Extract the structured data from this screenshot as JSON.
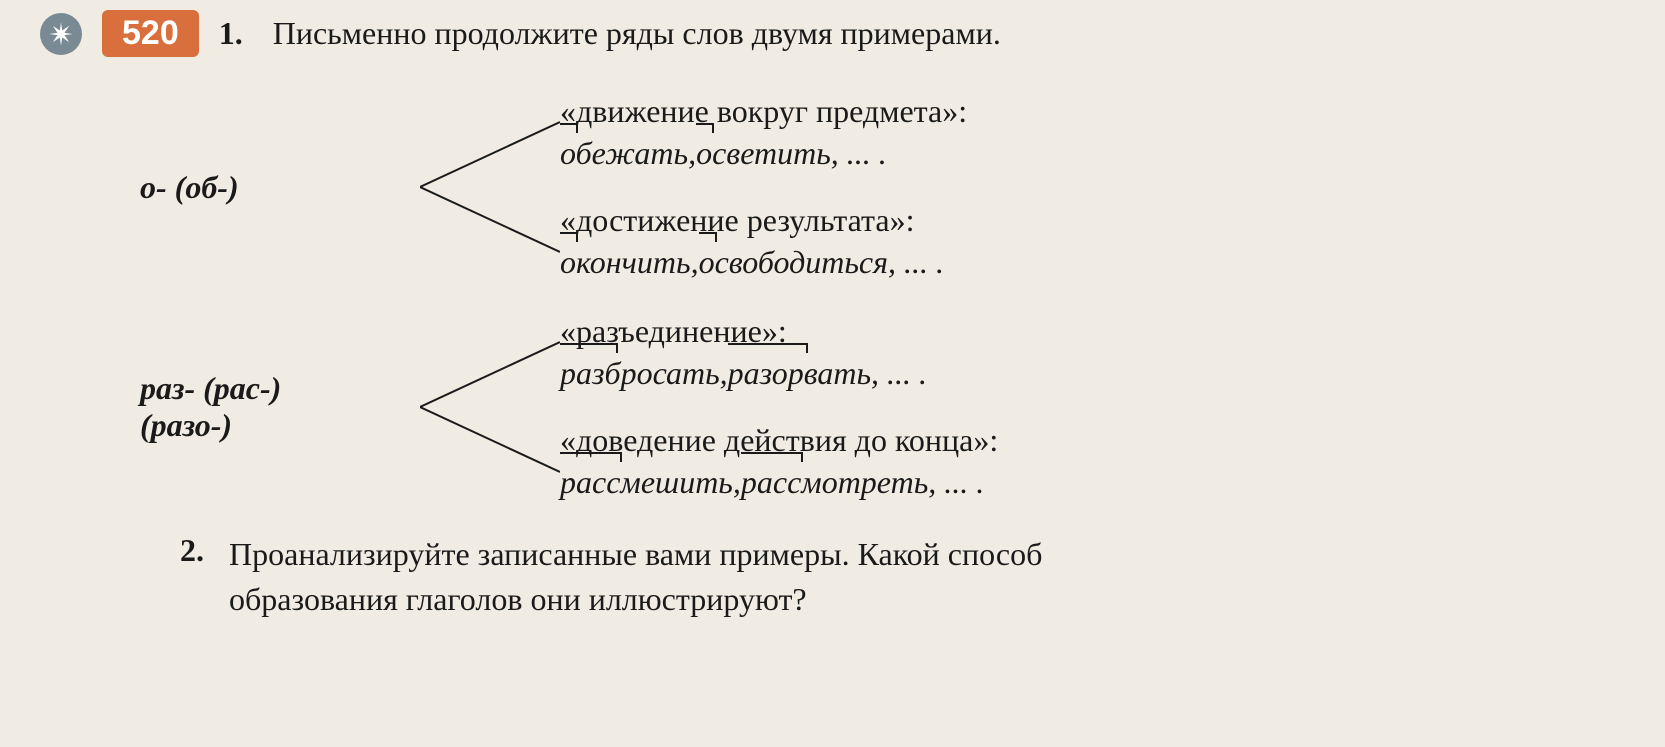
{
  "exercise_number": "520",
  "task1": {
    "number": "1.",
    "text": "Письменно продолжите ряды слов двумя примерами."
  },
  "groups": [
    {
      "prefix_label": "о- (об-)",
      "meanings": [
        {
          "title": "«движение вокруг предмета»:",
          "examples": [
            {
              "word": "обежать",
              "prefix_width": 18
            },
            {
              "word": "осветить",
              "prefix_width": 18
            }
          ],
          "trailing": ", ... ."
        },
        {
          "title": "«достижение результата»:",
          "examples": [
            {
              "word": "окончить",
              "prefix_width": 18
            },
            {
              "word": "освободиться",
              "prefix_width": 18
            }
          ],
          "trailing": ", ... ."
        }
      ]
    },
    {
      "prefix_label": "раз- (рас-)\n(разо-)",
      "meanings": [
        {
          "title": "«разъединение»:",
          "examples": [
            {
              "word": "разбросать",
              "prefix_width": 58
            },
            {
              "word": "разорвать",
              "prefix_width": 80
            }
          ],
          "trailing": ", ... ."
        },
        {
          "title": "«доведение действия до конца»:",
          "examples": [
            {
              "word": "рассмешить",
              "prefix_width": 62
            },
            {
              "word": "рассмотреть",
              "prefix_width": 62
            }
          ],
          "trailing": ", ... ."
        }
      ]
    }
  ],
  "task2": {
    "number": "2.",
    "text_line1": "Проанализируйте записанные вами примеры. Какой способ",
    "text_line2": "образования глаголов они иллюстрируют?"
  },
  "colors": {
    "background": "#f0ebe3",
    "badge_bg": "#d86f3d",
    "badge_text": "#ffffff",
    "icon_bg": "#7a8a95",
    "text": "#1a1a1a"
  }
}
